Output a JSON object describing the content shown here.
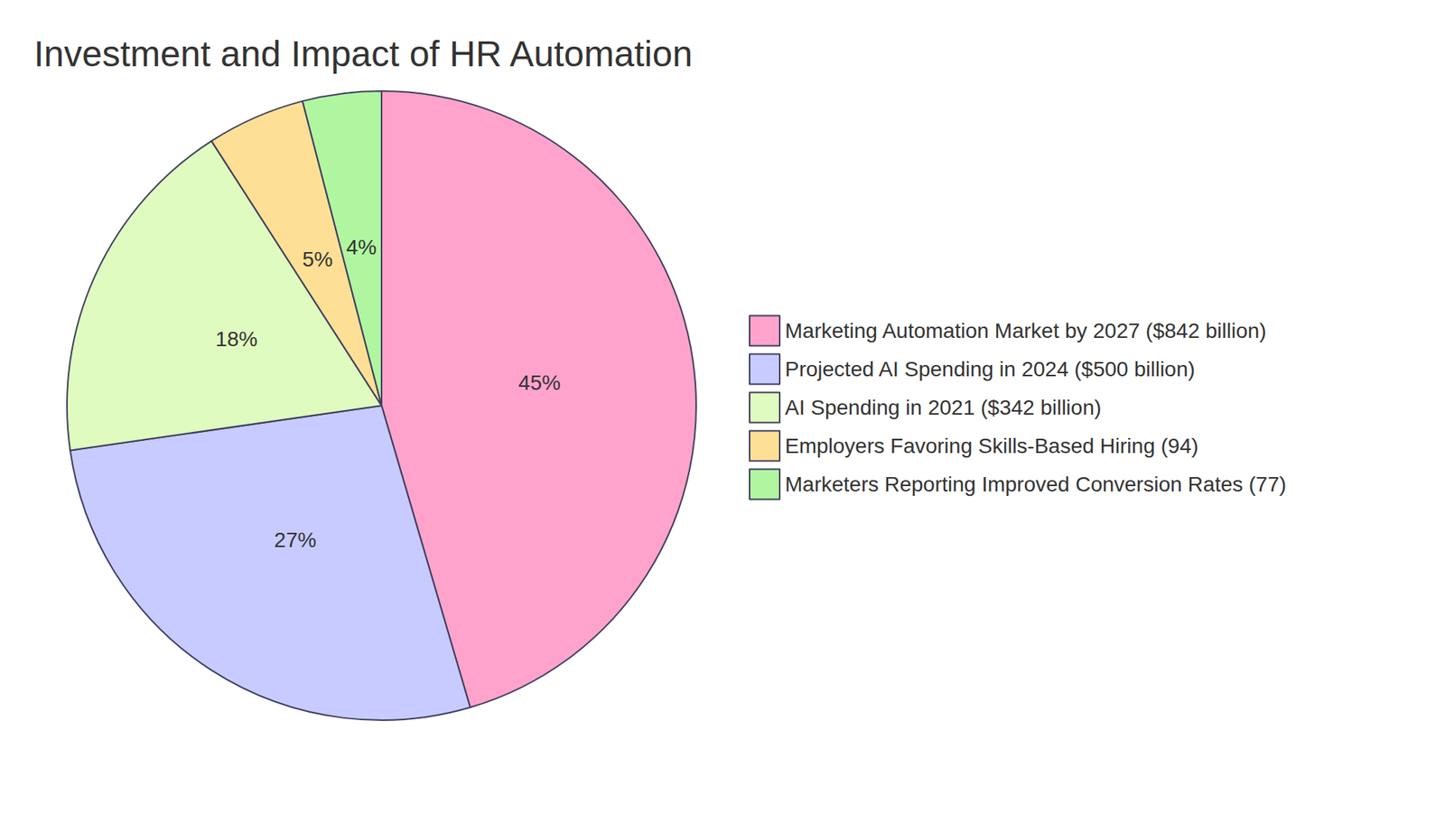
{
  "chart_data": {
    "type": "pie",
    "title": "Investment and Impact of HR Automation",
    "categories": [
      "Marketing Automation Market by 2027 ($842 billion)",
      "Projected AI Spending in 2024 ($500 billion)",
      "AI Spending in 2021 ($342 billion)",
      "Employers Favoring Skills-Based Hiring (94)",
      "Marketers Reporting Improved Conversion Rates (77)"
    ],
    "values": [
      45,
      27,
      18,
      5,
      4
    ],
    "value_labels": [
      "45%",
      "27%",
      "18%",
      "5%",
      "4%"
    ],
    "colors": [
      "#ffa3cd",
      "#c7cbff",
      "#dffbbf",
      "#fddf95",
      "#b0f6a1"
    ],
    "data_labels": true,
    "legend": "right"
  }
}
